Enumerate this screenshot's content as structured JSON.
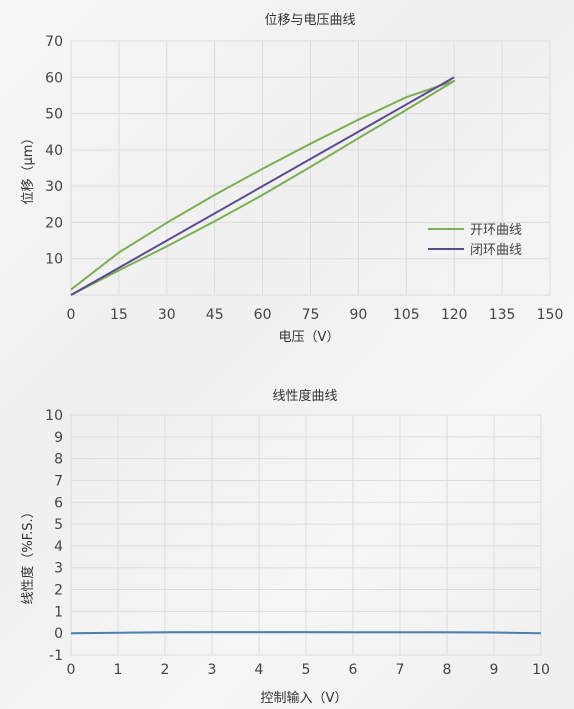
{
  "chart_data": [
    {
      "type": "line",
      "title": "位移与电压曲线",
      "xlabel": "电压（V）",
      "ylabel": "位移（μm）",
      "xlim": [
        0,
        150
      ],
      "ylim": [
        0,
        70
      ],
      "x_ticks": [
        "0",
        "15",
        "30",
        "45",
        "60",
        "75",
        "90",
        "105",
        "120",
        "135",
        "150"
      ],
      "y_ticks": [
        "10",
        "20",
        "30",
        "40",
        "50",
        "60",
        "70"
      ],
      "grid": true,
      "legend_position": "right",
      "series": [
        {
          "name": "开环曲线",
          "color": "#7caf55",
          "x": [
            0,
            15,
            30,
            45,
            60,
            75,
            90,
            105,
            120,
            105,
            90,
            75,
            60,
            45,
            30,
            15,
            0
          ],
          "y": [
            0,
            6.8,
            13.4,
            20.3,
            27.6,
            35.3,
            43.2,
            51.0,
            59.0,
            54.5,
            48.3,
            41.7,
            34.8,
            27.6,
            19.9,
            11.7,
            1.5
          ]
        },
        {
          "name": "闭环曲线",
          "color": "#5b4a8d",
          "x": [
            0,
            120
          ],
          "y": [
            0,
            60
          ]
        }
      ]
    },
    {
      "type": "line",
      "title": "线性度曲线",
      "xlabel": "控制输入（V）",
      "ylabel": "线性度（%F.S.）",
      "xlim": [
        0,
        10
      ],
      "ylim": [
        -1,
        10
      ],
      "x_ticks": [
        "0",
        "1",
        "2",
        "3",
        "4",
        "5",
        "6",
        "7",
        "8",
        "9",
        "10"
      ],
      "y_ticks": [
        "-1",
        "0",
        "1",
        "2",
        "3",
        "4",
        "5",
        "6",
        "7",
        "8",
        "9",
        "10"
      ],
      "grid": true,
      "series": [
        {
          "color": "#4a7fb0",
          "x": [
            0,
            1,
            2,
            3,
            4,
            5,
            6,
            7,
            8,
            9,
            10
          ],
          "y": [
            0,
            0.02,
            0.04,
            0.05,
            0.05,
            0.05,
            0.04,
            0.04,
            0.04,
            0.03,
            0
          ]
        }
      ]
    }
  ]
}
